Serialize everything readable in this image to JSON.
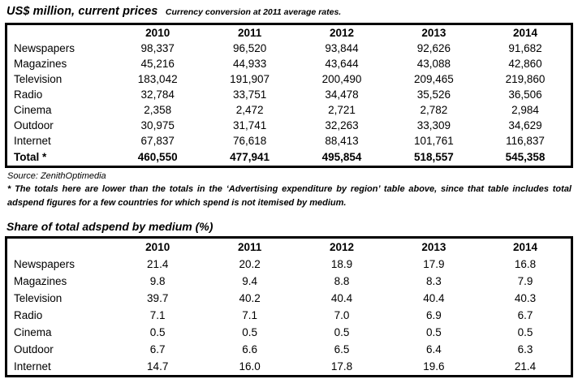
{
  "table1": {
    "title": "US$ million, current prices",
    "subtitle": "Currency conversion at 2011 average rates.",
    "years": [
      "2010",
      "2011",
      "2012",
      "2013",
      "2014"
    ],
    "rows": [
      {
        "label": "Newspapers",
        "values": [
          "98,337",
          "96,520",
          "93,844",
          "92,626",
          "91,682"
        ]
      },
      {
        "label": "Magazines",
        "values": [
          "45,216",
          "44,933",
          "43,644",
          "43,088",
          "42,860"
        ]
      },
      {
        "label": "Television",
        "values": [
          "183,042",
          "191,907",
          "200,490",
          "209,465",
          "219,860"
        ]
      },
      {
        "label": "Radio",
        "values": [
          "32,784",
          "33,751",
          "34,478",
          "35,526",
          "36,506"
        ]
      },
      {
        "label": "Cinema",
        "values": [
          "2,358",
          "2,472",
          "2,721",
          "2,782",
          "2,984"
        ]
      },
      {
        "label": "Outdoor",
        "values": [
          "30,975",
          "31,741",
          "32,263",
          "33,309",
          "34,629"
        ]
      },
      {
        "label": "Internet",
        "values": [
          "67,837",
          "76,618",
          "88,413",
          "101,761",
          "116,837"
        ]
      }
    ],
    "total": {
      "label": "Total *",
      "values": [
        "460,550",
        "477,941",
        "495,854",
        "518,557",
        "545,358"
      ]
    }
  },
  "notes": {
    "source": "Source: ZenithOptimedia",
    "footnote": "* The totals here are lower than the totals in the ‘Advertising expenditure by region’ table above, since that table includes total adspend figures for a few countries for which spend is not itemised by medium."
  },
  "table2": {
    "title": "Share of total adspend by medium (%)",
    "years": [
      "2010",
      "2011",
      "2012",
      "2013",
      "2014"
    ],
    "rows": [
      {
        "label": "Newspapers",
        "values": [
          "21.4",
          "20.2",
          "18.9",
          "17.9",
          "16.8"
        ]
      },
      {
        "label": "Magazines",
        "values": [
          "9.8",
          "9.4",
          "8.8",
          "8.3",
          "7.9"
        ]
      },
      {
        "label": "Television",
        "values": [
          "39.7",
          "40.2",
          "40.4",
          "40.4",
          "40.3"
        ]
      },
      {
        "label": "Radio",
        "values": [
          "7.1",
          "7.1",
          "7.0",
          "6.9",
          "6.7"
        ]
      },
      {
        "label": "Cinema",
        "values": [
          "0.5",
          "0.5",
          "0.5",
          "0.5",
          "0.5"
        ]
      },
      {
        "label": "Outdoor",
        "values": [
          "6.7",
          "6.6",
          "6.5",
          "6.4",
          "6.3"
        ]
      },
      {
        "label": "Internet",
        "values": [
          "14.7",
          "16.0",
          "17.8",
          "19.6",
          "21.4"
        ]
      }
    ]
  }
}
